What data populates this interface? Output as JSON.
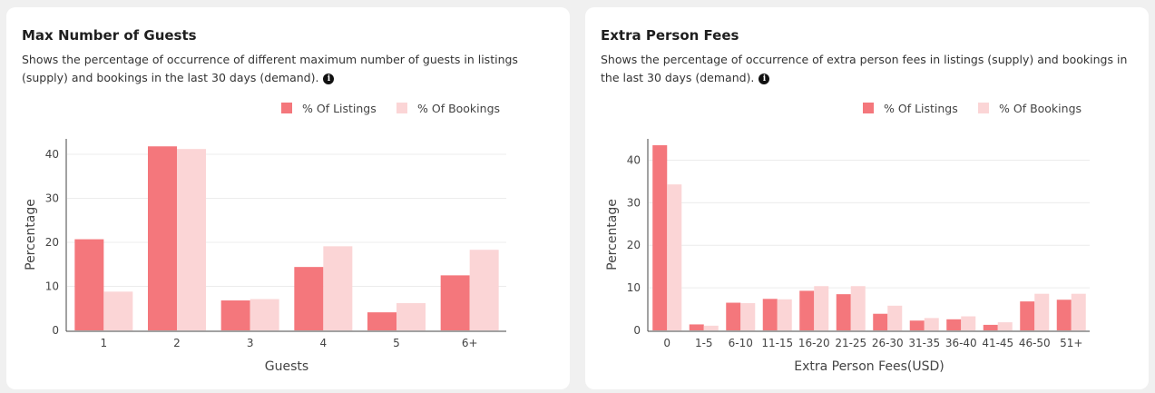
{
  "colors": {
    "listings": "#f4777c",
    "bookings": "#fbd5d6",
    "grid": "#ececec",
    "axis": "#444444"
  },
  "panels": [
    {
      "title": "Max Number of Guests",
      "description": "Shows the percentage of occurrence of different maximum number of guests in listings (supply) and bookings in the last 30 days (demand).",
      "info_icon": "info-icon",
      "legend": [
        "% Of Listings",
        "% Of Bookings"
      ]
    },
    {
      "title": "Extra Person Fees",
      "description": "Shows the percentage of occurrence of extra person fees in listings (supply) and bookings in the last 30 days (demand).",
      "info_icon": "info-icon",
      "legend": [
        "% Of Listings",
        "% Of Bookings"
      ]
    }
  ],
  "chart_data": [
    {
      "type": "bar",
      "categories": [
        "1",
        "2",
        "3",
        "4",
        "5",
        "6+"
      ],
      "series": [
        {
          "name": "% Of Listings",
          "values": [
            20.7,
            41.8,
            6.8,
            14.4,
            4.1,
            12.5
          ]
        },
        {
          "name": "% Of Bookings",
          "values": [
            8.8,
            41.2,
            7.1,
            19.1,
            6.2,
            18.3
          ]
        }
      ],
      "xlabel": "Guests",
      "ylabel": "Percentage",
      "yticks": [
        0,
        10,
        20,
        30,
        40
      ],
      "ylim": [
        0,
        43.5
      ],
      "grid": true,
      "legend_position": "top-right"
    },
    {
      "type": "bar",
      "categories": [
        "0",
        "1-5",
        "6-10",
        "11-15",
        "16-20",
        "21-25",
        "26-30",
        "31-35",
        "36-40",
        "41-45",
        "46-50",
        "51+"
      ],
      "series": [
        {
          "name": "% Of Listings",
          "values": [
            43.5,
            1.4,
            6.5,
            7.4,
            9.3,
            8.5,
            3.9,
            2.3,
            2.6,
            1.3,
            6.8,
            7.2
          ]
        },
        {
          "name": "% Of Bookings",
          "values": [
            34.3,
            1.1,
            6.4,
            7.3,
            10.4,
            10.4,
            5.8,
            2.9,
            3.3,
            1.9,
            8.6,
            8.6
          ]
        }
      ],
      "xlabel": "Extra Person Fees(USD)",
      "ylabel": "Percentage",
      "yticks": [
        0,
        10,
        20,
        30,
        40
      ],
      "ylim": [
        0,
        45
      ],
      "grid": true,
      "legend_position": "top-right"
    }
  ]
}
